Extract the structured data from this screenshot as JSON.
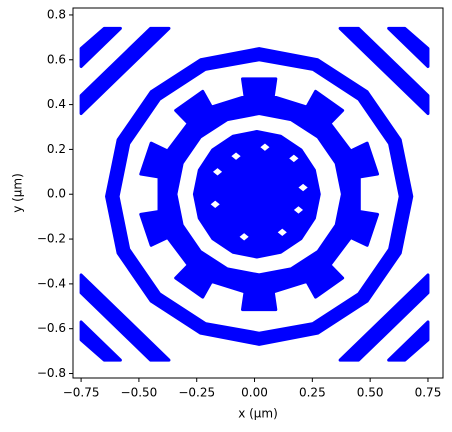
{
  "chart_data": {
    "type": "region",
    "xlabel": "x (µm)",
    "ylabel": "y (µm)",
    "color": "#0000ff",
    "grid": false,
    "xlim": [
      -0.785,
      0.815
    ],
    "ylim": [
      -0.82,
      0.831
    ],
    "xticks": [
      {
        "value": -0.75,
        "label": "−0.75"
      },
      {
        "value": -0.5,
        "label": "−0.50"
      },
      {
        "value": -0.25,
        "label": "−0.25"
      },
      {
        "value": 0,
        "label": "0.00"
      },
      {
        "value": 0.25,
        "label": "0.25"
      },
      {
        "value": 0.5,
        "label": "0.50"
      },
      {
        "value": 0.75,
        "label": "0.75"
      }
    ],
    "yticks": [
      {
        "value": -0.8,
        "label": "−0.8"
      },
      {
        "value": -0.6,
        "label": "−0.6"
      },
      {
        "value": -0.4,
        "label": "−0.4"
      },
      {
        "value": -0.2,
        "label": "−0.2"
      },
      {
        "value": 0,
        "label": "0.0"
      },
      {
        "value": 0.2,
        "label": "0.2"
      },
      {
        "value": 0.4,
        "label": "0.4"
      },
      {
        "value": 0.6,
        "label": "0.6"
      },
      {
        "value": 0.8,
        "label": "0.8"
      }
    ],
    "shapes": [
      {
        "x": [
          0.28,
          0.259,
          0.201,
          0.113,
          0.01,
          -0.093,
          -0.181,
          -0.239,
          -0.26,
          -0.239,
          -0.181,
          -0.093,
          0.01,
          0.113,
          0.201,
          0.259,
          null,
          -0.05,
          -0.08,
          -0.11,
          -0.08,
          null,
          0.075,
          0.045,
          0.015,
          0.045,
          null,
          0.2,
          0.17,
          0.14,
          0.17,
          null,
          0.24,
          0.21,
          0.18,
          0.21,
          null,
          0.22,
          0.19,
          0.16,
          0.19,
          null,
          0.15,
          0.12,
          0.09,
          0.12,
          null,
          -0.015,
          -0.045,
          -0.075,
          -0.045,
          null,
          -0.14,
          -0.17,
          -0.2,
          -0.17,
          null,
          -0.13,
          -0.16,
          -0.19,
          -0.16
        ],
        "y": [
          0,
          0.107,
          0.198,
          0.259,
          0.28,
          0.259,
          0.198,
          0.107,
          0,
          -0.107,
          -0.198,
          -0.259,
          -0.28,
          -0.259,
          -0.198,
          -0.107,
          null,
          0.17,
          0.195,
          0.17,
          0.145,
          null,
          0.21,
          0.235,
          0.21,
          0.185,
          null,
          0.16,
          0.185,
          0.16,
          0.135,
          null,
          0.03,
          0.055,
          0.03,
          0.005,
          null,
          -0.07,
          -0.045,
          -0.07,
          -0.095,
          null,
          -0.17,
          -0.145,
          -0.17,
          -0.195,
          null,
          -0.19,
          -0.165,
          -0.19,
          -0.215,
          null,
          -0.045,
          -0.02,
          -0.045,
          -0.07,
          null,
          0.1,
          0.125,
          0.1,
          0.075
        ]
      },
      {
        "x": [
          0.453,
          0.532,
          0.487,
          0.416,
          0.326,
          0.381,
          0.264,
          0.226,
          0.081,
          0.092,
          -0.052,
          -0.041,
          -0.186,
          -0.224,
          -0.341,
          -0.286,
          -0.376,
          -0.447,
          -0.492,
          -0.413,
          -0.413,
          -0.492,
          -0.447,
          -0.376,
          -0.286,
          -0.341,
          -0.224,
          -0.186,
          -0.041,
          -0.052,
          0.092,
          0.081,
          0.226,
          0.264,
          0.381,
          0.326,
          0.416,
          0.487,
          0.532,
          0.453,
          null,
          0.38,
          0.353,
          0.275,
          0.158,
          0.02,
          -0.118,
          -0.235,
          -0.313,
          -0.34,
          -0.313,
          -0.235,
          -0.118,
          0.02,
          0.158,
          0.275,
          0.353
        ],
        "y": [
          0.077,
          0.09,
          0.228,
          0.193,
          0.316,
          0.374,
          0.459,
          0.389,
          0.436,
          0.515,
          0.515,
          0.436,
          0.389,
          0.459,
          0.374,
          0.316,
          0.193,
          0.228,
          0.09,
          0.077,
          -0.077,
          -0.09,
          -0.228,
          -0.193,
          -0.316,
          -0.374,
          -0.459,
          -0.389,
          -0.436,
          -0.515,
          -0.515,
          -0.436,
          -0.389,
          -0.459,
          -0.374,
          -0.316,
          -0.193,
          -0.228,
          -0.09,
          -0.077,
          null,
          0,
          0.138,
          0.255,
          0.333,
          0.36,
          0.333,
          0.255,
          0.138,
          0,
          -0.138,
          -0.255,
          -0.333,
          -0.36,
          -0.333,
          -0.255,
          -0.138
        ]
      },
      {
        "x": [
          0.68,
          0.63,
          0.487,
          0.273,
          0.02,
          -0.233,
          -0.447,
          -0.59,
          -0.64,
          -0.59,
          -0.447,
          -0.233,
          0.02,
          0.273,
          0.487,
          0.63,
          null,
          0.63,
          0.584,
          0.451,
          0.253,
          0.02,
          -0.213,
          -0.411,
          -0.544,
          -0.59,
          -0.544,
          -0.411,
          -0.213,
          0.02,
          0.253,
          0.451,
          0.584
        ],
        "y": [
          -0.01,
          0.243,
          0.457,
          0.6,
          0.65,
          0.6,
          0.457,
          0.243,
          -0.01,
          -0.263,
          -0.477,
          -0.62,
          -0.67,
          -0.62,
          -0.477,
          -0.263,
          null,
          -0.01,
          0.225,
          0.424,
          0.557,
          0.6,
          0.557,
          0.424,
          0.225,
          -0.01,
          -0.245,
          -0.444,
          -0.577,
          -0.62,
          -0.577,
          -0.444,
          -0.245
        ]
      },
      {
        "x": [
          -0.75,
          -0.75,
          -0.65,
          -0.58
        ],
        "y": [
          0.57,
          0.65,
          0.74,
          0.74
        ]
      },
      {
        "x": [
          -0.75,
          -0.75,
          -0.45,
          -0.37
        ],
        "y": [
          0.36,
          0.44,
          0.74,
          0.74
        ]
      },
      {
        "x": [
          0.75,
          0.75,
          0.65,
          0.58
        ],
        "y": [
          0.57,
          0.65,
          0.74,
          0.74
        ]
      },
      {
        "x": [
          0.75,
          0.75,
          0.45,
          0.37
        ],
        "y": [
          0.36,
          0.44,
          0.74,
          0.74
        ]
      },
      {
        "x": [
          -0.75,
          -0.75,
          -0.65,
          -0.58
        ],
        "y": [
          -0.57,
          -0.65,
          -0.74,
          -0.74
        ]
      },
      {
        "x": [
          -0.75,
          -0.75,
          -0.45,
          -0.37
        ],
        "y": [
          -0.36,
          -0.44,
          -0.74,
          -0.74
        ]
      },
      {
        "x": [
          0.75,
          0.75,
          0.65,
          0.58
        ],
        "y": [
          -0.57,
          -0.65,
          -0.74,
          -0.74
        ]
      },
      {
        "x": [
          0.75,
          0.75,
          0.45,
          0.37
        ],
        "y": [
          -0.36,
          -0.44,
          -0.74,
          -0.74
        ]
      }
    ]
  }
}
